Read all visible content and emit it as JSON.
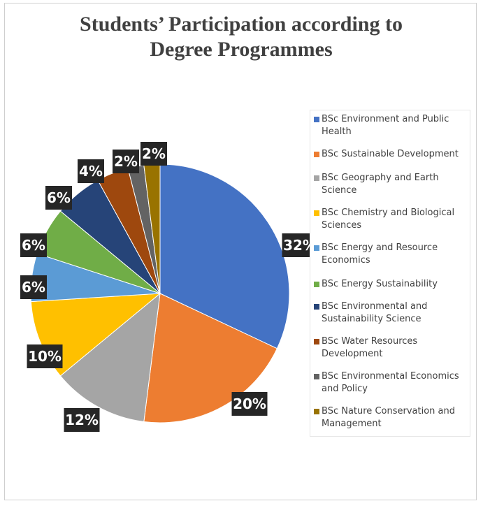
{
  "chart_data": {
    "type": "pie",
    "title": "Students’ Participation according to\nDegree Programmes",
    "legend_position": "right",
    "series": [
      {
        "label": "BSc Environment and Public Health",
        "value": 32,
        "display": "32%",
        "color": "#4472C4"
      },
      {
        "label": "BSc Sustainable Development",
        "value": 20,
        "display": "20%",
        "color": "#ED7D31"
      },
      {
        "label": "BSc Geography and Earth Science",
        "value": 12,
        "display": "12%",
        "color": "#A5A5A5"
      },
      {
        "label": "BSc Chemistry and Biological Sciences",
        "value": 10,
        "display": "10%",
        "color": "#FFC000"
      },
      {
        "label": "BSc Energy and Resource Economics",
        "value": 6,
        "display": "6%",
        "color": "#5B9BD5"
      },
      {
        "label": "BSc Energy Sustainability",
        "value": 6,
        "display": "6%",
        "color": "#70AD47"
      },
      {
        "label": "BSc Environmental and Sustainability Science",
        "value": 6,
        "display": "6%",
        "color": "#264478"
      },
      {
        "label": "BSc Water Resources Development",
        "value": 4,
        "display": "4%",
        "color": "#9E480E"
      },
      {
        "label": "BSc Environmental Economics and Policy",
        "value": 2,
        "display": "2%",
        "color": "#636363"
      },
      {
        "label": "BSc Nature Conservation and Management",
        "value": 2,
        "display": "2%",
        "color": "#997300"
      }
    ]
  }
}
